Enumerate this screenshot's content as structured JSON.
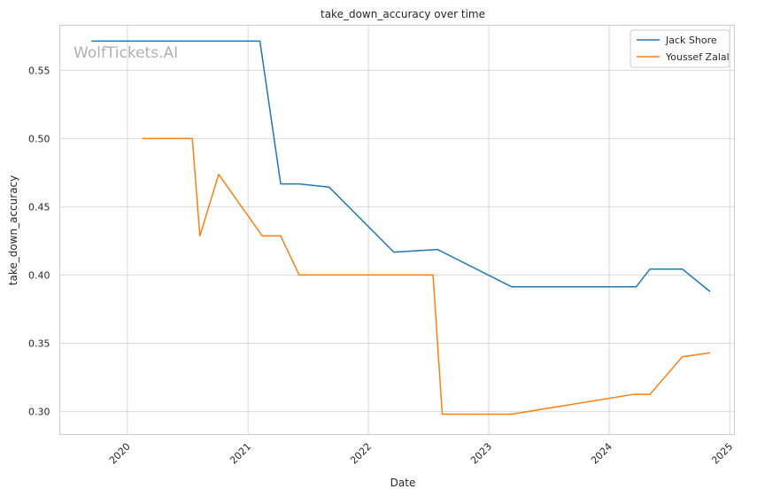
{
  "chart_data": {
    "type": "line",
    "title": "take_down_accuracy over time",
    "xlabel": "Date",
    "ylabel": "take_down_accuracy",
    "watermark": "WolfTickets.AI",
    "x_type": "date",
    "xlim": [
      "2019-06-10",
      "2025-01-15"
    ],
    "ylim": [
      0.283,
      0.583
    ],
    "x_ticks": [
      "2020",
      "2021",
      "2022",
      "2023",
      "2024",
      "2025"
    ],
    "y_ticks": [
      "0.30",
      "0.35",
      "0.40",
      "0.45",
      "0.50",
      "0.55"
    ],
    "grid": true,
    "legend_position": "top-right",
    "series": [
      {
        "name": "Jack Shore",
        "color": "#1f77b4",
        "points": [
          [
            "2019-09-14",
            0.5714
          ],
          [
            "2021-02-06",
            0.5714
          ],
          [
            "2021-04-10",
            0.4667
          ],
          [
            "2021-06-05",
            0.4667
          ],
          [
            "2021-09-04",
            0.4643
          ],
          [
            "2022-03-19",
            0.4167
          ],
          [
            "2022-07-30",
            0.4186
          ],
          [
            "2023-03-11",
            0.3913
          ],
          [
            "2024-03-23",
            0.3913
          ],
          [
            "2024-05-04",
            0.4043
          ],
          [
            "2024-08-10",
            0.4043
          ],
          [
            "2024-11-02",
            0.3878
          ]
        ]
      },
      {
        "name": "Youssef Zalal",
        "color": "#ff7f0e",
        "points": [
          [
            "2020-02-15",
            0.5
          ],
          [
            "2020-07-16",
            0.5
          ],
          [
            "2020-08-08",
            0.4286
          ],
          [
            "2020-10-04",
            0.4737
          ],
          [
            "2021-02-13",
            0.4286
          ],
          [
            "2021-04-10",
            0.4286
          ],
          [
            "2021-06-05",
            0.4
          ],
          [
            "2022-07-16",
            0.4
          ],
          [
            "2022-08-13",
            0.2979
          ],
          [
            "2023-03-11",
            0.2979
          ],
          [
            "2024-03-16",
            0.3125
          ],
          [
            "2024-05-04",
            0.3125
          ],
          [
            "2024-08-10",
            0.34
          ],
          [
            "2024-11-02",
            0.3429
          ]
        ]
      }
    ]
  }
}
